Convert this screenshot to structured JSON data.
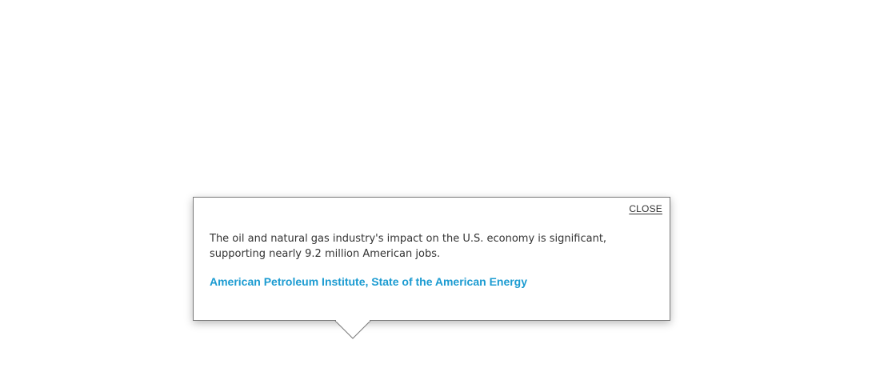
{
  "popup": {
    "close_label": "CLOSE",
    "quote": "The oil and natural gas industry's impact on the U.S. economy is significant, supporting nearly 9.2 million American jobs.",
    "source_label": "American Petroleum Institute, State of the American Energy",
    "colors": {
      "source_link": "#1b9bd1",
      "text": "#333333",
      "border": "#7a7a7a"
    }
  }
}
